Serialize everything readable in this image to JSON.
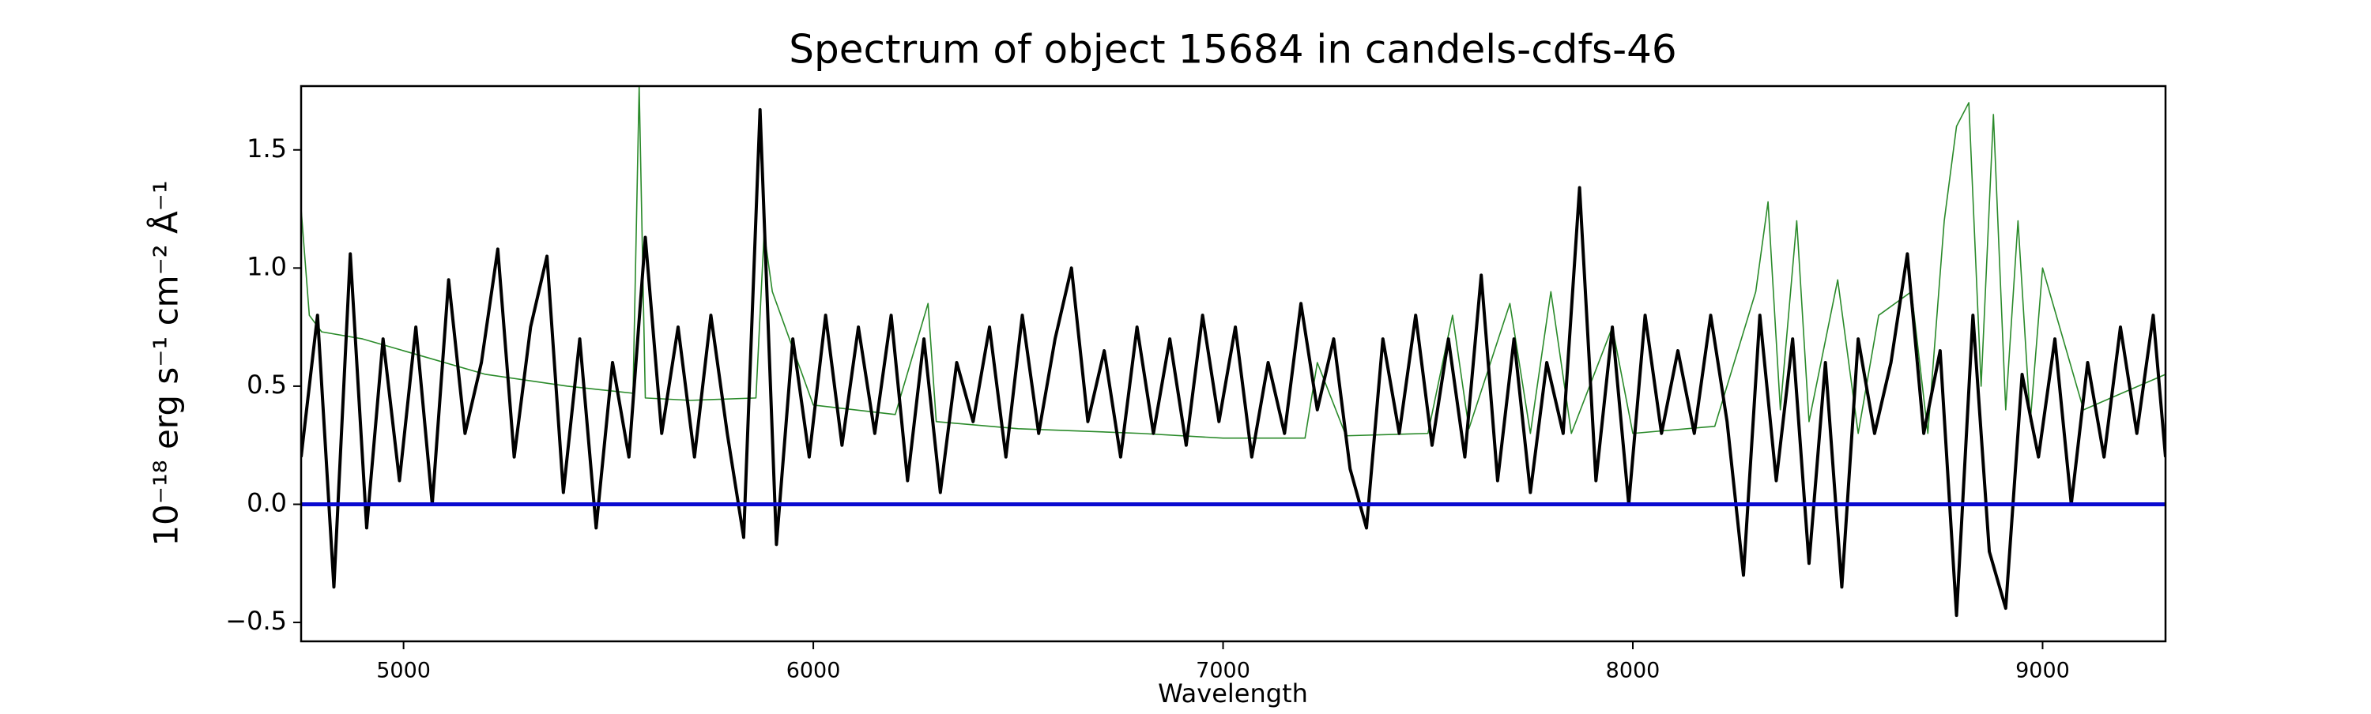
{
  "chart_data": {
    "type": "line",
    "title": "Spectrum of object 15684 in candels-cdfs-46",
    "xlabel": "Wavelength",
    "ylabel": "10⁻¹⁸ erg s⁻¹ cm⁻² Å⁻¹",
    "xlim": [
      4750,
      9300
    ],
    "ylim": [
      -0.58,
      1.77
    ],
    "xticks": [
      5000,
      6000,
      7000,
      8000,
      9000
    ],
    "yticks": [
      {
        "value": -0.5,
        "label": "−0.5"
      },
      {
        "value": 0,
        "label": "0.0"
      },
      0.5,
      {
        "value": 1,
        "label": "1.0"
      },
      1.5
    ],
    "series": [
      {
        "color": "#2a8a2a",
        "width": 1.6,
        "x": [
          4750,
          4770,
          4800,
          4900,
          5000,
          5200,
          5400,
          5560,
          5575,
          5590,
          5700,
          5860,
          5880,
          5900,
          6000,
          6200,
          6280,
          6300,
          6500,
          6800,
          7000,
          7200,
          7230,
          7300,
          7500,
          7560,
          7600,
          7700,
          7750,
          7800,
          7850,
          7950,
          8000,
          8200,
          8300,
          8330,
          8360,
          8400,
          8430,
          8500,
          8550,
          8600,
          8680,
          8720,
          8760,
          8790,
          8820,
          8850,
          8880,
          8910,
          8940,
          8970,
          9000,
          9100,
          9300
        ],
        "values": [
          1.25,
          0.8,
          0.73,
          0.7,
          0.65,
          0.55,
          0.5,
          0.47,
          1.77,
          0.45,
          0.44,
          0.45,
          1.15,
          0.9,
          0.42,
          0.38,
          0.85,
          0.35,
          0.32,
          0.3,
          0.28,
          0.28,
          0.6,
          0.29,
          0.3,
          0.8,
          0.32,
          0.85,
          0.3,
          0.9,
          0.3,
          0.75,
          0.3,
          0.33,
          0.9,
          1.28,
          0.4,
          1.2,
          0.35,
          0.95,
          0.3,
          0.8,
          0.9,
          0.3,
          1.2,
          1.6,
          1.7,
          0.5,
          1.65,
          0.4,
          1.2,
          0.35,
          1.0,
          0.4,
          0.55
        ]
      },
      {
        "color": "#000000",
        "width": 4,
        "x": [
          4750,
          4790,
          4830,
          4870,
          4910,
          4950,
          4990,
          5030,
          5070,
          5110,
          5150,
          5190,
          5230,
          5270,
          5310,
          5350,
          5390,
          5430,
          5470,
          5510,
          5550,
          5590,
          5630,
          5670,
          5710,
          5750,
          5790,
          5830,
          5870,
          5910,
          5950,
          5990,
          6030,
          6070,
          6110,
          6150,
          6190,
          6230,
          6270,
          6310,
          6350,
          6390,
          6430,
          6470,
          6510,
          6550,
          6590,
          6630,
          6670,
          6710,
          6750,
          6790,
          6830,
          6870,
          6910,
          6950,
          6990,
          7030,
          7070,
          7110,
          7150,
          7190,
          7230,
          7270,
          7310,
          7350,
          7390,
          7430,
          7470,
          7510,
          7550,
          7590,
          7630,
          7670,
          7710,
          7750,
          7790,
          7830,
          7870,
          7910,
          7950,
          7990,
          8030,
          8070,
          8110,
          8150,
          8190,
          8230,
          8270,
          8310,
          8350,
          8390,
          8430,
          8470,
          8510,
          8550,
          8590,
          8630,
          8670,
          8710,
          8750,
          8790,
          8830,
          8870,
          8910,
          8950,
          8990,
          9030,
          9070,
          9110,
          9150,
          9190,
          9230,
          9270,
          9300
        ],
        "values": [
          0.2,
          0.8,
          -0.35,
          1.06,
          -0.1,
          0.7,
          0.1,
          0.75,
          0.0,
          0.95,
          0.3,
          0.6,
          1.08,
          0.2,
          0.75,
          1.05,
          0.05,
          0.7,
          -0.1,
          0.6,
          0.2,
          1.13,
          0.3,
          0.75,
          0.2,
          0.8,
          0.3,
          -0.14,
          1.67,
          -0.17,
          0.7,
          0.2,
          0.8,
          0.25,
          0.75,
          0.3,
          0.8,
          0.1,
          0.7,
          0.05,
          0.6,
          0.35,
          0.75,
          0.2,
          0.8,
          0.3,
          0.7,
          1.0,
          0.35,
          0.65,
          0.2,
          0.75,
          0.3,
          0.7,
          0.25,
          0.8,
          0.35,
          0.75,
          0.2,
          0.6,
          0.3,
          0.85,
          0.4,
          0.7,
          0.15,
          -0.1,
          0.7,
          0.3,
          0.8,
          0.25,
          0.7,
          0.2,
          0.97,
          0.1,
          0.7,
          0.05,
          0.6,
          0.3,
          1.34,
          0.1,
          0.75,
          0.0,
          0.8,
          0.3,
          0.65,
          0.3,
          0.8,
          0.35,
          -0.3,
          0.8,
          0.1,
          0.7,
          -0.25,
          0.6,
          -0.35,
          0.7,
          0.3,
          0.6,
          1.06,
          0.3,
          0.65,
          -0.47,
          0.8,
          -0.2,
          -0.44,
          0.55,
          0.2,
          0.7,
          0.0,
          0.6,
          0.2,
          0.75,
          0.3,
          0.8,
          0.2
        ]
      },
      {
        "color": "#0a0ad0",
        "width": 5,
        "x": [
          4750,
          9300
        ],
        "values": [
          0,
          0
        ]
      }
    ]
  }
}
